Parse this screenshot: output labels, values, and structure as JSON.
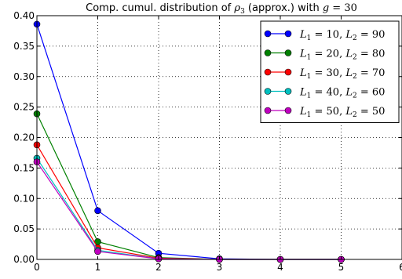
{
  "chart_data": {
    "type": "line",
    "title": "Comp. cumul. distribution of ρ3 (approx.) with g = 30",
    "title_parts": {
      "prefix": "Comp. cumul. distribution of ",
      "sym": "ρ",
      "sub": "3",
      "middle": " (approx.) with ",
      "var": "g",
      "eq": " = 30"
    },
    "x": [
      0,
      1,
      2,
      3,
      4,
      5
    ],
    "xlim": [
      0,
      6
    ],
    "ylim": [
      0,
      0.4
    ],
    "x_ticks": [
      "0",
      "1",
      "2",
      "3",
      "4",
      "5",
      "6"
    ],
    "y_ticks": [
      "0.00",
      "0.05",
      "0.10",
      "0.15",
      "0.20",
      "0.25",
      "0.30",
      "0.35",
      "0.40"
    ],
    "grid": true,
    "legend_position": "top-right",
    "series": [
      {
        "name": "L1 = 10, L2 = 90",
        "a": "10",
        "b": "90",
        "color": "#0000ff",
        "values": [
          0.386,
          0.08,
          0.01,
          0.001,
          0.0,
          0.0
        ]
      },
      {
        "name": "L1 = 20, L2 = 80",
        "a": "20",
        "b": "80",
        "color": "#008000",
        "values": [
          0.239,
          0.029,
          0.003,
          0.0,
          0.0,
          0.0
        ]
      },
      {
        "name": "L1 = 30, L2 = 70",
        "a": "30",
        "b": "70",
        "color": "#ff0000",
        "values": [
          0.188,
          0.019,
          0.002,
          0.0,
          0.0,
          0.0
        ]
      },
      {
        "name": "L1 = 40, L2 = 60",
        "a": "40",
        "b": "60",
        "color": "#00bfbf",
        "values": [
          0.166,
          0.015,
          0.001,
          0.0,
          0.0,
          0.0
        ]
      },
      {
        "name": "L1 = 50, L2 = 50",
        "a": "50",
        "b": "50",
        "color": "#bf00bf",
        "values": [
          0.16,
          0.013,
          0.001,
          0.0,
          0.0,
          0.0
        ]
      }
    ]
  }
}
